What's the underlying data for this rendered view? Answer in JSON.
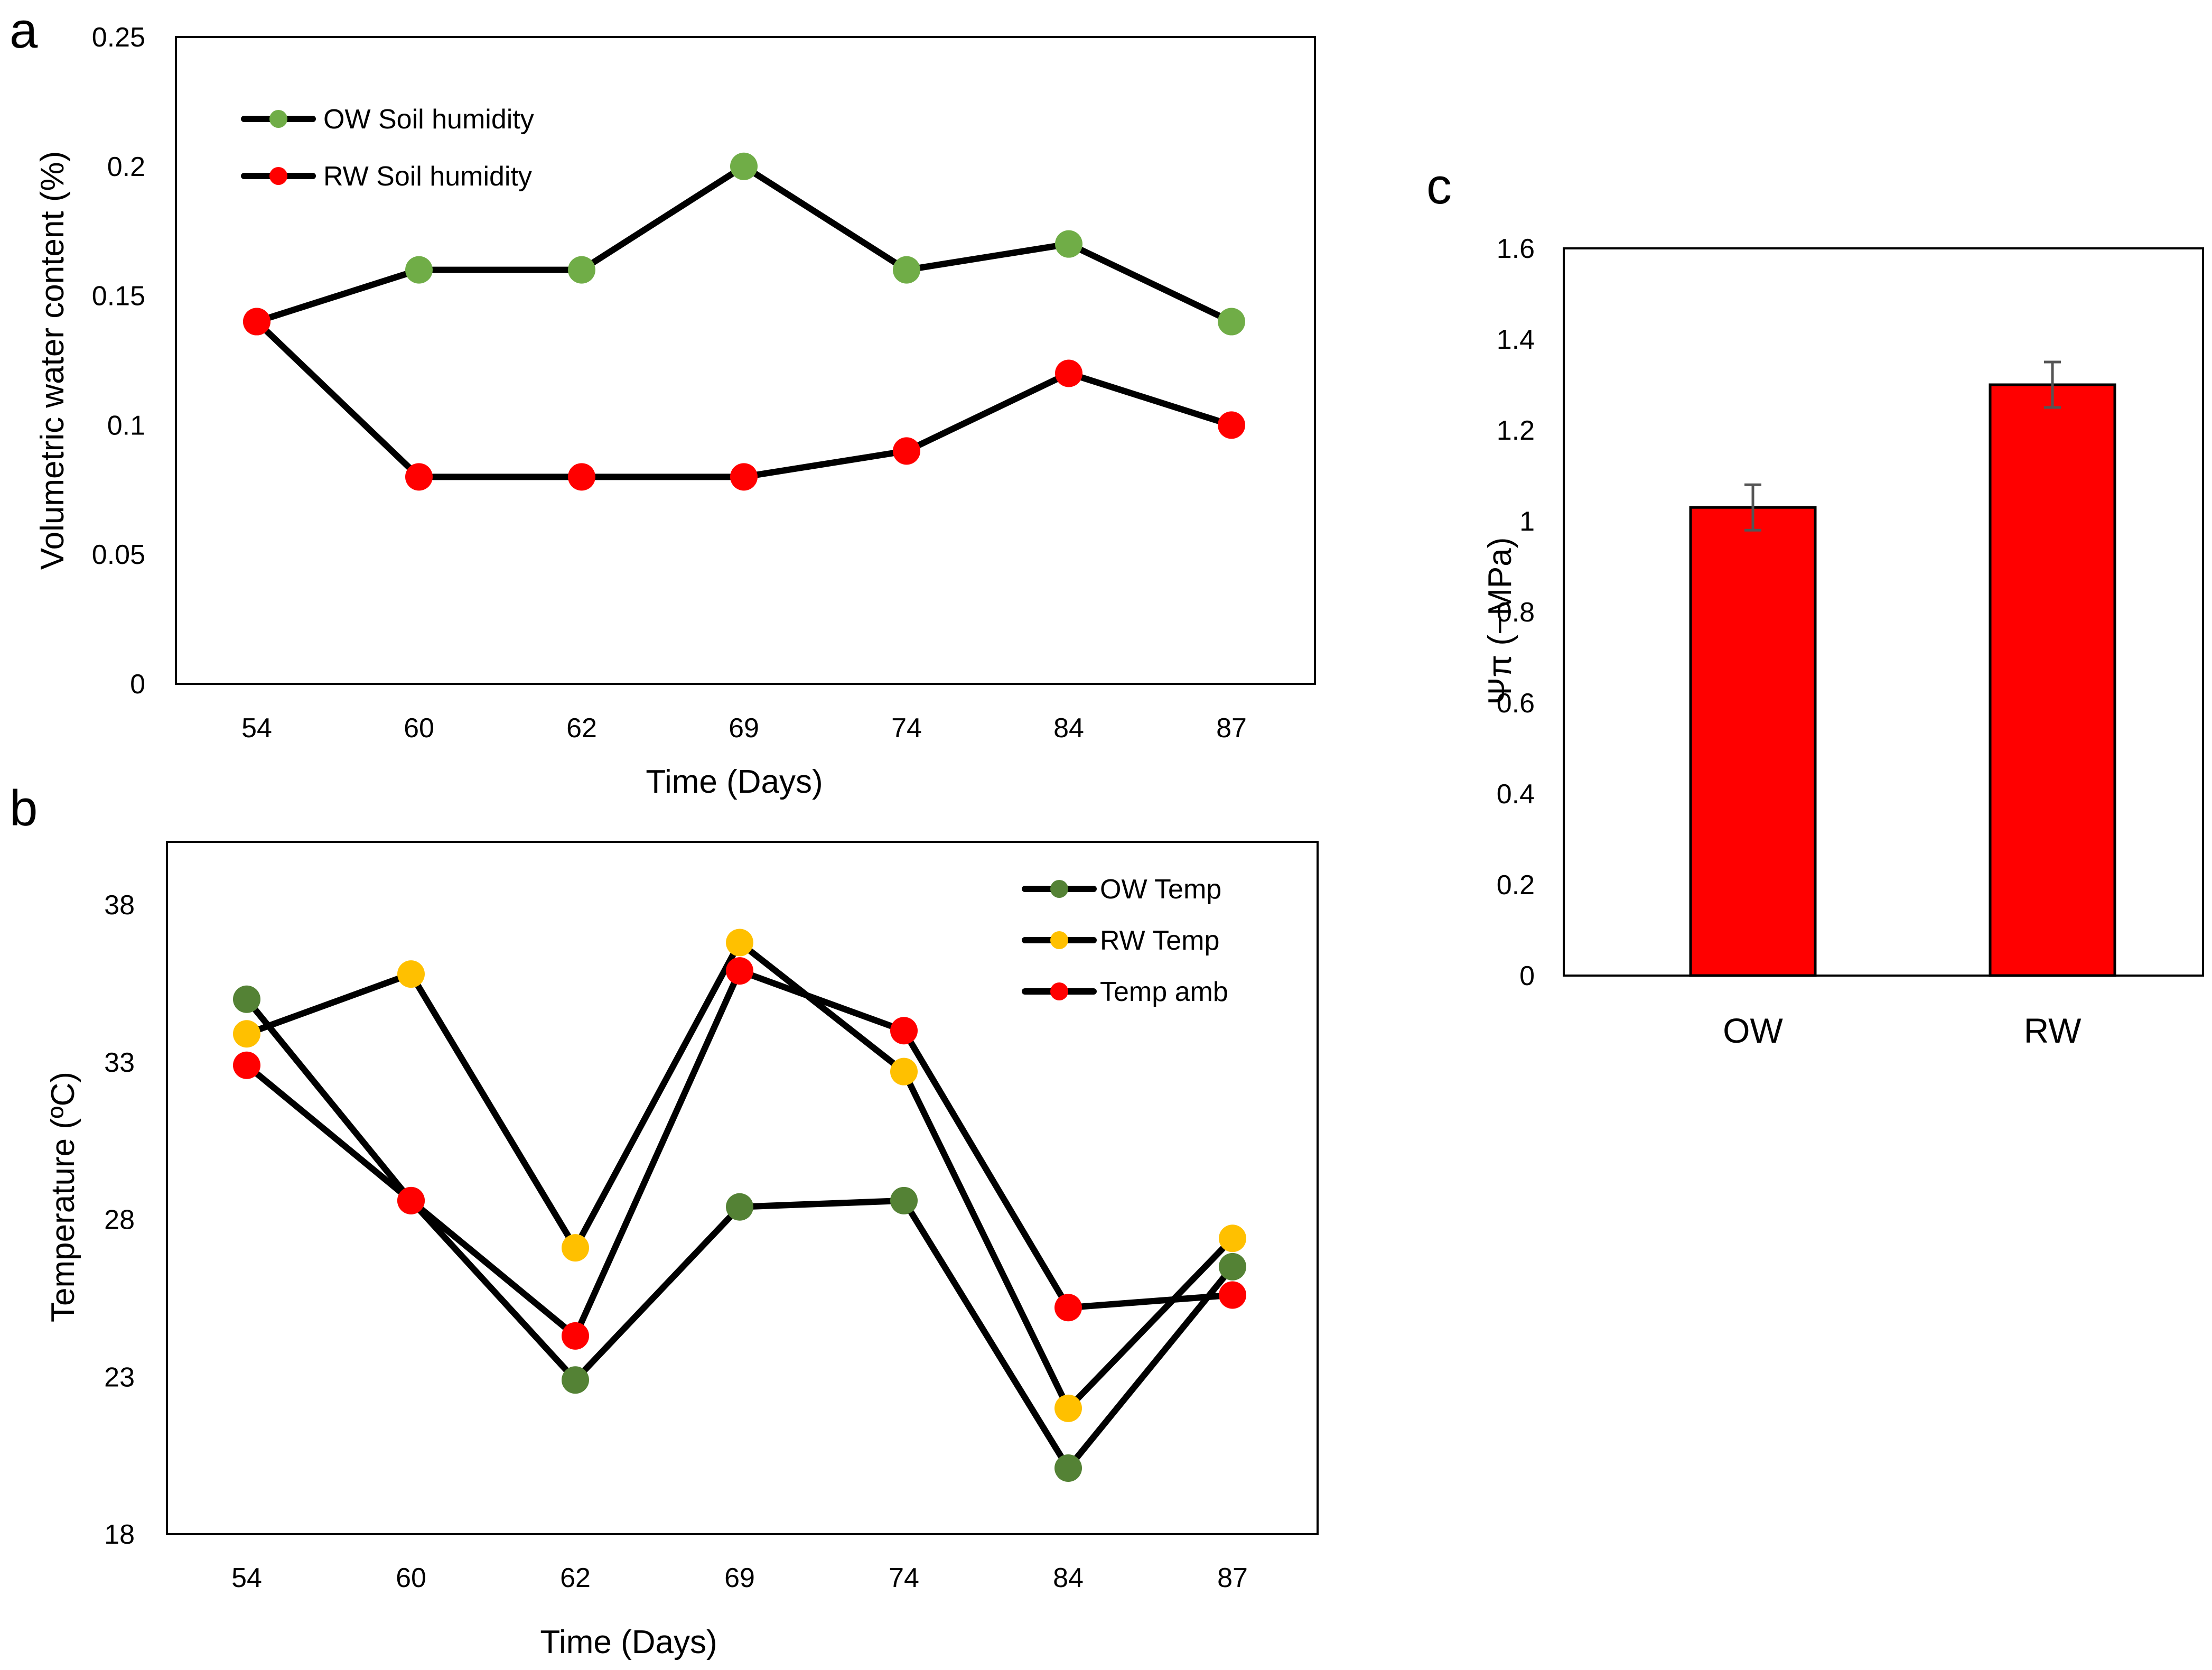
{
  "chart_data": [
    {
      "panel": "a",
      "type": "line",
      "xlabel": "Time (Days)",
      "ylabel": "Volumetric water content (%)",
      "categories": [
        "54",
        "60",
        "62",
        "69",
        "74",
        "84",
        "87"
      ],
      "ylim": [
        0,
        0.25
      ],
      "yticks": [
        "0",
        "0.05",
        "0.1",
        "0.15",
        "0.2",
        "0.25"
      ],
      "legend_position": "top-left",
      "series": [
        {
          "name": "OW Soil humidity",
          "color": "#70AD47",
          "values": [
            0.14,
            0.16,
            0.16,
            0.2,
            0.16,
            0.17,
            0.14
          ]
        },
        {
          "name": "RW Soil humidity",
          "color": "#FF0000",
          "values": [
            0.14,
            0.08,
            0.08,
            0.08,
            0.09,
            0.12,
            0.1
          ]
        }
      ]
    },
    {
      "panel": "b",
      "type": "line",
      "xlabel": "Time (Days)",
      "ylabel": "Temperature (ºC)",
      "categories": [
        "54",
        "60",
        "62",
        "69",
        "74",
        "84",
        "87"
      ],
      "ylim": [
        18,
        40
      ],
      "yticks": [
        "18",
        "23",
        "28",
        "33",
        "38"
      ],
      "legend_position": "top-right",
      "series": [
        {
          "name": "OW Temp",
          "color": "#548235",
          "values": [
            35.0,
            28.6,
            22.9,
            28.4,
            28.6,
            20.1,
            26.5
          ]
        },
        {
          "name": "RW Temp",
          "color": "#FFC000",
          "values": [
            33.9,
            35.8,
            27.1,
            36.8,
            32.7,
            22.0,
            27.4
          ]
        },
        {
          "name": "Temp amb",
          "color": "#FF0000",
          "values": [
            32.9,
            28.6,
            24.3,
            35.9,
            34.0,
            25.2,
            25.6
          ]
        }
      ]
    },
    {
      "panel": "c",
      "type": "bar",
      "ylabel": "Ψπ (−MPa)",
      "categories": [
        "OW",
        "RW"
      ],
      "ylim": [
        0,
        1.6
      ],
      "yticks": [
        "0",
        "0.2",
        "0.4",
        "0.6",
        "0.8",
        "1",
        "1.2",
        "1.4",
        "1.6"
      ],
      "bar_color": "#FF0000",
      "series": [
        {
          "name": "Ψπ",
          "values": [
            1.03,
            1.3
          ],
          "errors": [
            0.05,
            0.05
          ]
        }
      ]
    }
  ]
}
